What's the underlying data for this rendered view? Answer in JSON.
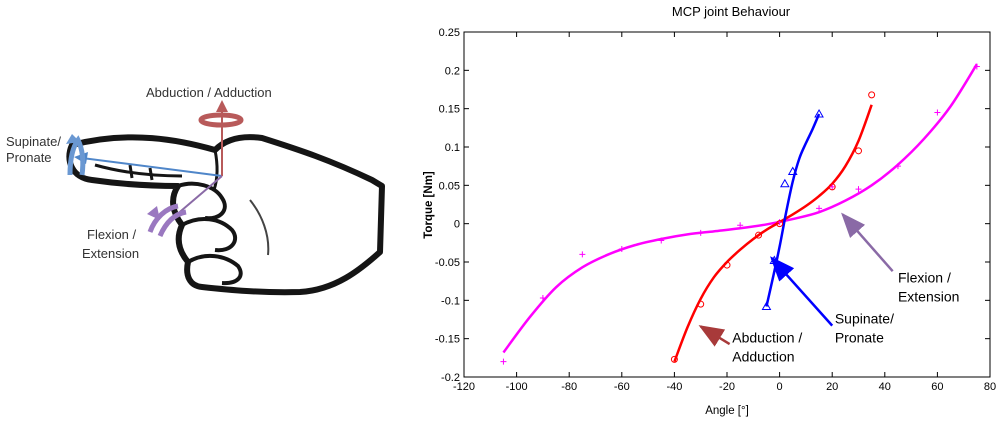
{
  "hand": {
    "label_abduction": "Abduction / Adduction",
    "label_supinate_1": "Supinate/",
    "label_supinate_2": "Pronate",
    "label_flexion_1": "Flexion /",
    "label_flexion_2": "Extension"
  },
  "chart_data": {
    "type": "scatter",
    "title": "MCP joint Behaviour",
    "xlabel": "Angle [°]",
    "ylabel": "Torque [Nm]",
    "xlim": [
      -120,
      80
    ],
    "ylim": [
      -0.2,
      0.25
    ],
    "xticks": [
      -120,
      -100,
      -80,
      -60,
      -40,
      -20,
      0,
      20,
      40,
      60,
      80
    ],
    "yticks": [
      -0.2,
      -0.15,
      -0.1,
      -0.05,
      0,
      0.05,
      0.1,
      0.15,
      0.2,
      0.25
    ],
    "xtick_labels": [
      "-120",
      "-100",
      "-80",
      "-60",
      "-40",
      "-20",
      "0",
      "20",
      "40",
      "60",
      "80"
    ],
    "ytick_labels": [
      "-0.2",
      "-0.15",
      "-0.1",
      "-0.05",
      "0",
      "0.05",
      "0.1",
      "0.15",
      "0.2",
      "0.25"
    ],
    "grid": false,
    "series": [
      {
        "color": "#ff00ff",
        "marker": "plus",
        "points": [
          [
            -105,
            -0.18
          ],
          [
            -90,
            -0.097
          ],
          [
            -75,
            -0.04
          ],
          [
            -60,
            -0.033
          ],
          [
            -45,
            -0.022
          ],
          [
            -30,
            -0.012
          ],
          [
            -15,
            -0.002
          ],
          [
            0,
            0.002
          ],
          [
            15,
            0.02
          ],
          [
            20,
            0.048
          ],
          [
            30,
            0.045
          ],
          [
            45,
            0.075
          ],
          [
            60,
            0.145
          ],
          [
            75,
            0.205
          ]
        ],
        "fit": [
          [
            -105,
            -0.168
          ],
          [
            -95,
            -0.122
          ],
          [
            -85,
            -0.083
          ],
          [
            -75,
            -0.057
          ],
          [
            -65,
            -0.04
          ],
          [
            -55,
            -0.028
          ],
          [
            -45,
            -0.02
          ],
          [
            -35,
            -0.014
          ],
          [
            -25,
            -0.01
          ],
          [
            -15,
            -0.006
          ],
          [
            -5,
            -0.001
          ],
          [
            5,
            0.006
          ],
          [
            15,
            0.015
          ],
          [
            25,
            0.03
          ],
          [
            35,
            0.05
          ],
          [
            45,
            0.077
          ],
          [
            55,
            0.111
          ],
          [
            65,
            0.153
          ],
          [
            75,
            0.208
          ]
        ]
      },
      {
        "color": "#ff0000",
        "marker": "circle",
        "points": [
          [
            -40,
            -0.177
          ],
          [
            -30,
            -0.105
          ],
          [
            -20,
            -0.054
          ],
          [
            -8,
            -0.015
          ],
          [
            0,
            0.0
          ],
          [
            20,
            0.048
          ],
          [
            30,
            0.095
          ],
          [
            35,
            0.168
          ]
        ],
        "fit": [
          [
            -40,
            -0.18
          ],
          [
            -35,
            -0.135
          ],
          [
            -30,
            -0.098
          ],
          [
            -25,
            -0.07
          ],
          [
            -20,
            -0.05
          ],
          [
            -15,
            -0.034
          ],
          [
            -10,
            -0.02
          ],
          [
            -5,
            -0.008
          ],
          [
            0,
            0.002
          ],
          [
            5,
            0.012
          ],
          [
            10,
            0.023
          ],
          [
            15,
            0.036
          ],
          [
            20,
            0.052
          ],
          [
            25,
            0.075
          ],
          [
            30,
            0.108
          ],
          [
            35,
            0.155
          ]
        ]
      },
      {
        "color": "#0000ff",
        "marker": "triangle",
        "points": [
          [
            -5,
            -0.108
          ],
          [
            -2,
            -0.048
          ],
          [
            2,
            0.052
          ],
          [
            5,
            0.068
          ],
          [
            15,
            0.143
          ]
        ],
        "fit": [
          [
            -5,
            -0.108
          ],
          [
            -2.5,
            -0.07
          ],
          [
            0,
            -0.03
          ],
          [
            2.5,
            0.015
          ],
          [
            5,
            0.055
          ],
          [
            7.5,
            0.085
          ],
          [
            10,
            0.105
          ],
          [
            12.5,
            0.123
          ],
          [
            15,
            0.143
          ]
        ]
      }
    ],
    "annotations": [
      {
        "lines": [
          "Flexion /",
          "Extension"
        ],
        "color": "#8a6aa6",
        "text_at": [
          45,
          -0.077
        ],
        "arrow_from": [
          43,
          -0.062
        ],
        "arrow_to": [
          24,
          0.012
        ]
      },
      {
        "lines": [
          "Supinate/",
          "Pronate"
        ],
        "color": "#0000ff",
        "text_at": [
          21,
          -0.13
        ],
        "arrow_from": [
          20,
          -0.133
        ],
        "arrow_to": [
          -3,
          -0.045
        ]
      },
      {
        "lines": [
          "Abduction /",
          "Adduction"
        ],
        "color": "#a83a3a",
        "text_at": [
          -18,
          -0.155
        ],
        "arrow_from": [
          -19,
          -0.157
        ],
        "arrow_to": [
          -30,
          -0.134
        ]
      }
    ]
  }
}
